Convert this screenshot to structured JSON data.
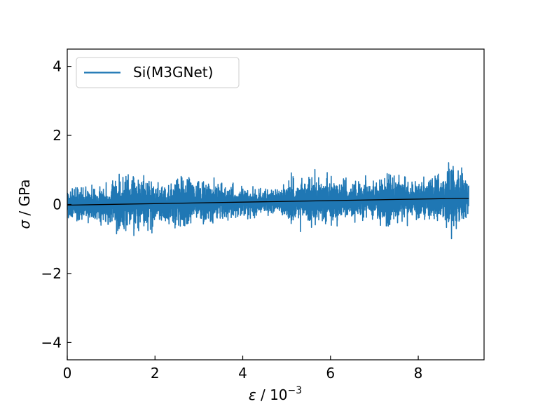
{
  "chart_data": {
    "type": "line",
    "title": "",
    "xlabel": {
      "symbol": "ε",
      "rest": " / 10",
      "exponent": "−3"
    },
    "ylabel": {
      "symbol": "σ",
      "rest": " / GPa"
    },
    "xlim": [
      0,
      9.5
    ],
    "ylim": [
      -4.5,
      4.5
    ],
    "xticks": [
      0,
      2,
      4,
      6,
      8
    ],
    "xtick_labels": [
      "0",
      "2",
      "4",
      "6",
      "8"
    ],
    "yticks": [
      -4,
      -2,
      0,
      2,
      4
    ],
    "ytick_labels": [
      "−4",
      "−2",
      "0",
      "2",
      "4"
    ],
    "grid": false,
    "legend_position": "upper-left",
    "series": [
      {
        "name": "Si(M3GNet)",
        "color": "#1f77b4",
        "kind": "noisy stress trace",
        "x_range": [
          0,
          9.15
        ],
        "amplitude_envelope": [
          [
            0.0,
            0.75
          ],
          [
            0.3,
            0.7
          ],
          [
            0.6,
            0.65
          ],
          [
            0.9,
            0.75
          ],
          [
            1.2,
            1.35
          ],
          [
            1.5,
            1.2
          ],
          [
            1.8,
            1.1
          ],
          [
            2.1,
            0.8
          ],
          [
            2.4,
            0.85
          ],
          [
            2.6,
            1.3
          ],
          [
            2.9,
            0.75
          ],
          [
            3.2,
            1.1
          ],
          [
            3.5,
            0.9
          ],
          [
            3.8,
            0.6
          ],
          [
            4.1,
            0.6
          ],
          [
            4.5,
            0.55
          ],
          [
            4.8,
            0.5
          ],
          [
            5.1,
            0.95
          ],
          [
            5.4,
            1.0
          ],
          [
            5.7,
            1.1
          ],
          [
            6.0,
            0.95
          ],
          [
            6.3,
            0.85
          ],
          [
            6.7,
            0.8
          ],
          [
            7.0,
            0.9
          ],
          [
            7.3,
            1.3
          ],
          [
            7.6,
            0.85
          ],
          [
            8.0,
            0.9
          ],
          [
            8.3,
            1.0
          ],
          [
            8.6,
            1.1
          ],
          [
            8.85,
            1.45
          ],
          [
            9.15,
            0.85
          ]
        ]
      },
      {
        "name": "",
        "color": "#000000",
        "kind": "linear fit",
        "x": [
          0,
          9.15
        ],
        "y": [
          -0.02,
          0.18
        ]
      }
    ]
  }
}
